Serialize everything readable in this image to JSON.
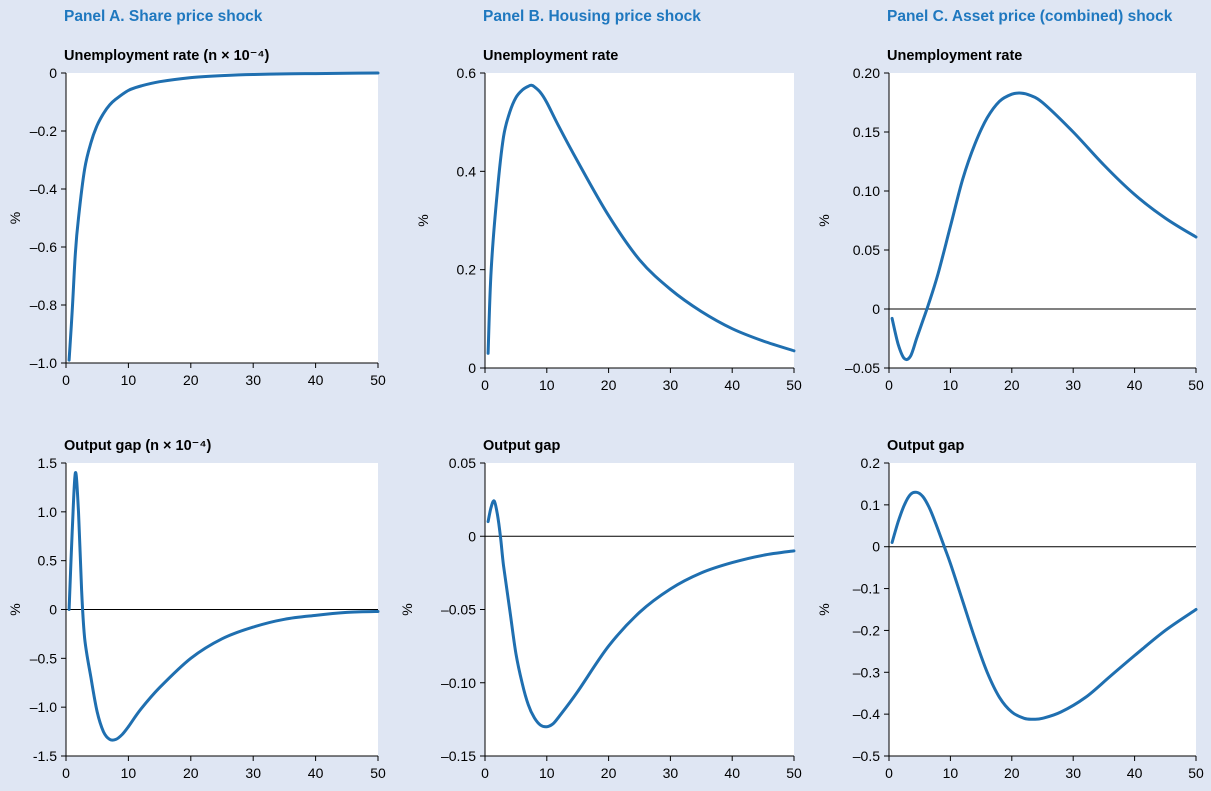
{
  "panels": [
    {
      "title": "Panel A. Share price shock"
    },
    {
      "title": "Panel B. Housing price shock"
    },
    {
      "title": "Panel C. Asset price (combined) shock"
    }
  ],
  "colors": {
    "series": "#1f6fb0",
    "panel_title": "#1f78bf",
    "background": "#dfe6f3",
    "plot_area": "#ffffff"
  },
  "chart_data": [
    {
      "id": "a1",
      "panel": 0,
      "type": "line",
      "title": "Unemployment rate (n × 10⁻⁴)",
      "ylabel": "%",
      "xlim": [
        0,
        50
      ],
      "ylim": [
        -1.0,
        0
      ],
      "xticks": [
        0,
        10,
        20,
        30,
        40,
        50
      ],
      "yticks": [
        -1.0,
        -0.8,
        -0.6,
        -0.4,
        -0.2,
        0
      ],
      "ytick_labels": [
        "–1.0",
        "–0.8",
        "–0.6",
        "–0.4",
        "–0.2",
        "0"
      ],
      "zero_line": false,
      "grid": false,
      "series": [
        {
          "x": [
            0.5,
            1,
            1.5,
            2,
            3,
            4,
            5,
            6,
            7,
            8,
            10,
            12,
            15,
            20,
            25,
            30,
            35,
            40,
            45,
            50
          ],
          "y": [
            -0.99,
            -0.82,
            -0.62,
            -0.5,
            -0.33,
            -0.24,
            -0.18,
            -0.14,
            -0.11,
            -0.09,
            -0.06,
            -0.045,
            -0.03,
            -0.016,
            -0.009,
            -0.005,
            -0.003,
            -0.002,
            -0.001,
            0
          ]
        }
      ]
    },
    {
      "id": "b1",
      "panel": 1,
      "type": "line",
      "title": "Unemployment rate",
      "ylabel": "%",
      "xlim": [
        0,
        50
      ],
      "ylim": [
        0,
        0.6
      ],
      "xticks": [
        0,
        10,
        20,
        30,
        40,
        50
      ],
      "yticks": [
        0,
        0.2,
        0.4,
        0.6
      ],
      "ytick_labels": [
        "0",
        "0.2",
        "0.4",
        "0.6"
      ],
      "zero_line": false,
      "grid": false,
      "series": [
        {
          "x": [
            0.5,
            1,
            2,
            3,
            4,
            5,
            6,
            7,
            7.5,
            8,
            9,
            10,
            12,
            15,
            20,
            25,
            30,
            35,
            40,
            45,
            50
          ],
          "y": [
            0.03,
            0.2,
            0.36,
            0.47,
            0.52,
            0.55,
            0.565,
            0.573,
            0.575,
            0.572,
            0.56,
            0.54,
            0.49,
            0.42,
            0.31,
            0.22,
            0.16,
            0.115,
            0.08,
            0.055,
            0.035
          ]
        }
      ]
    },
    {
      "id": "c1",
      "panel": 2,
      "type": "line",
      "title": "Unemployment rate",
      "ylabel": "%",
      "xlim": [
        0,
        50
      ],
      "ylim": [
        -0.05,
        0.2
      ],
      "xticks": [
        0,
        10,
        20,
        30,
        40,
        50
      ],
      "yticks": [
        -0.05,
        0,
        0.05,
        0.1,
        0.15,
        0.2
      ],
      "ytick_labels": [
        "–0.05",
        "0",
        "0.05",
        "0.10",
        "0.15",
        "0.20"
      ],
      "zero_line": true,
      "grid": false,
      "series": [
        {
          "x": [
            0.5,
            1.5,
            2.5,
            3.5,
            4.5,
            5.5,
            6.5,
            8,
            10,
            12,
            14,
            16,
            18,
            20,
            21.5,
            23,
            25,
            30,
            35,
            40,
            45,
            50
          ],
          "y": [
            -0.008,
            -0.03,
            -0.042,
            -0.04,
            -0.025,
            -0.01,
            0.005,
            0.03,
            0.07,
            0.11,
            0.14,
            0.162,
            0.176,
            0.182,
            0.183,
            0.181,
            0.175,
            0.15,
            0.122,
            0.097,
            0.077,
            0.061
          ]
        }
      ]
    },
    {
      "id": "a2",
      "panel": 0,
      "type": "line",
      "title": "Output gap (n × 10⁻⁴)",
      "ylabel": "%",
      "xlim": [
        0,
        50
      ],
      "ylim": [
        -1.5,
        1.5
      ],
      "xticks": [
        0,
        10,
        20,
        30,
        40,
        50
      ],
      "yticks": [
        -1.5,
        -1.0,
        -0.5,
        0,
        0.5,
        1.0,
        1.5
      ],
      "ytick_labels": [
        "-1.5",
        "–1.0",
        "–0.5",
        "0",
        "0.5",
        "1.0",
        "1.5"
      ],
      "zero_line": true,
      "grid": false,
      "series": [
        {
          "x": [
            0.5,
            1,
            1.5,
            2,
            2.5,
            3,
            4,
            5,
            6,
            7,
            8,
            9,
            10,
            12,
            15,
            20,
            25,
            30,
            35,
            40,
            45,
            50
          ],
          "y": [
            0,
            0.8,
            1.4,
            1.0,
            0.2,
            -0.3,
            -0.7,
            -1.05,
            -1.25,
            -1.33,
            -1.33,
            -1.28,
            -1.2,
            -1.02,
            -0.8,
            -0.5,
            -0.3,
            -0.18,
            -0.1,
            -0.06,
            -0.03,
            -0.02
          ]
        }
      ]
    },
    {
      "id": "b2",
      "panel": 1,
      "type": "line",
      "title": "Output gap",
      "ylabel": "%",
      "xlim": [
        0,
        50
      ],
      "ylim": [
        -0.15,
        0.05
      ],
      "xticks": [
        0,
        10,
        20,
        30,
        40,
        50
      ],
      "yticks": [
        -0.15,
        -0.1,
        -0.05,
        0,
        0.05
      ],
      "ytick_labels": [
        "–0.15",
        "–0.10",
        "–0.05",
        "0",
        "0.05"
      ],
      "zero_line": true,
      "grid": false,
      "series": [
        {
          "x": [
            0.5,
            1,
            1.5,
            2,
            2.5,
            3,
            4,
            5,
            6,
            7,
            8,
            9,
            10,
            11,
            12,
            15,
            20,
            25,
            30,
            35,
            40,
            45,
            50
          ],
          "y": [
            0.01,
            0.02,
            0.024,
            0.015,
            0.0,
            -0.02,
            -0.05,
            -0.08,
            -0.1,
            -0.115,
            -0.124,
            -0.129,
            -0.13,
            -0.128,
            -0.123,
            -0.106,
            -0.075,
            -0.052,
            -0.036,
            -0.025,
            -0.018,
            -0.013,
            -0.01
          ]
        }
      ]
    },
    {
      "id": "c2",
      "panel": 2,
      "type": "line",
      "title": "Output gap",
      "ylabel": "%",
      "xlim": [
        0,
        50
      ],
      "ylim": [
        -0.5,
        0.2
      ],
      "xticks": [
        0,
        10,
        20,
        30,
        40,
        50
      ],
      "yticks": [
        -0.5,
        -0.4,
        -0.3,
        -0.2,
        -0.1,
        0,
        0.1,
        0.2
      ],
      "ytick_labels": [
        "–0.5",
        "–0.4",
        "–0.3",
        "–0.2",
        "–0.1",
        "0",
        "0.1",
        "0.2"
      ],
      "zero_line": true,
      "grid": false,
      "series": [
        {
          "x": [
            0.5,
            1.5,
            2.5,
            3.5,
            4.5,
            5.5,
            6.5,
            7.5,
            9,
            10,
            12,
            14,
            16,
            18,
            20,
            22,
            23.5,
            25,
            28,
            32,
            36,
            40,
            45,
            50
          ],
          "y": [
            0.01,
            0.06,
            0.1,
            0.125,
            0.13,
            0.12,
            0.095,
            0.06,
            0.0,
            -0.04,
            -0.13,
            -0.22,
            -0.3,
            -0.36,
            -0.395,
            -0.41,
            -0.412,
            -0.41,
            -0.395,
            -0.36,
            -0.31,
            -0.26,
            -0.2,
            -0.15
          ]
        }
      ]
    }
  ]
}
